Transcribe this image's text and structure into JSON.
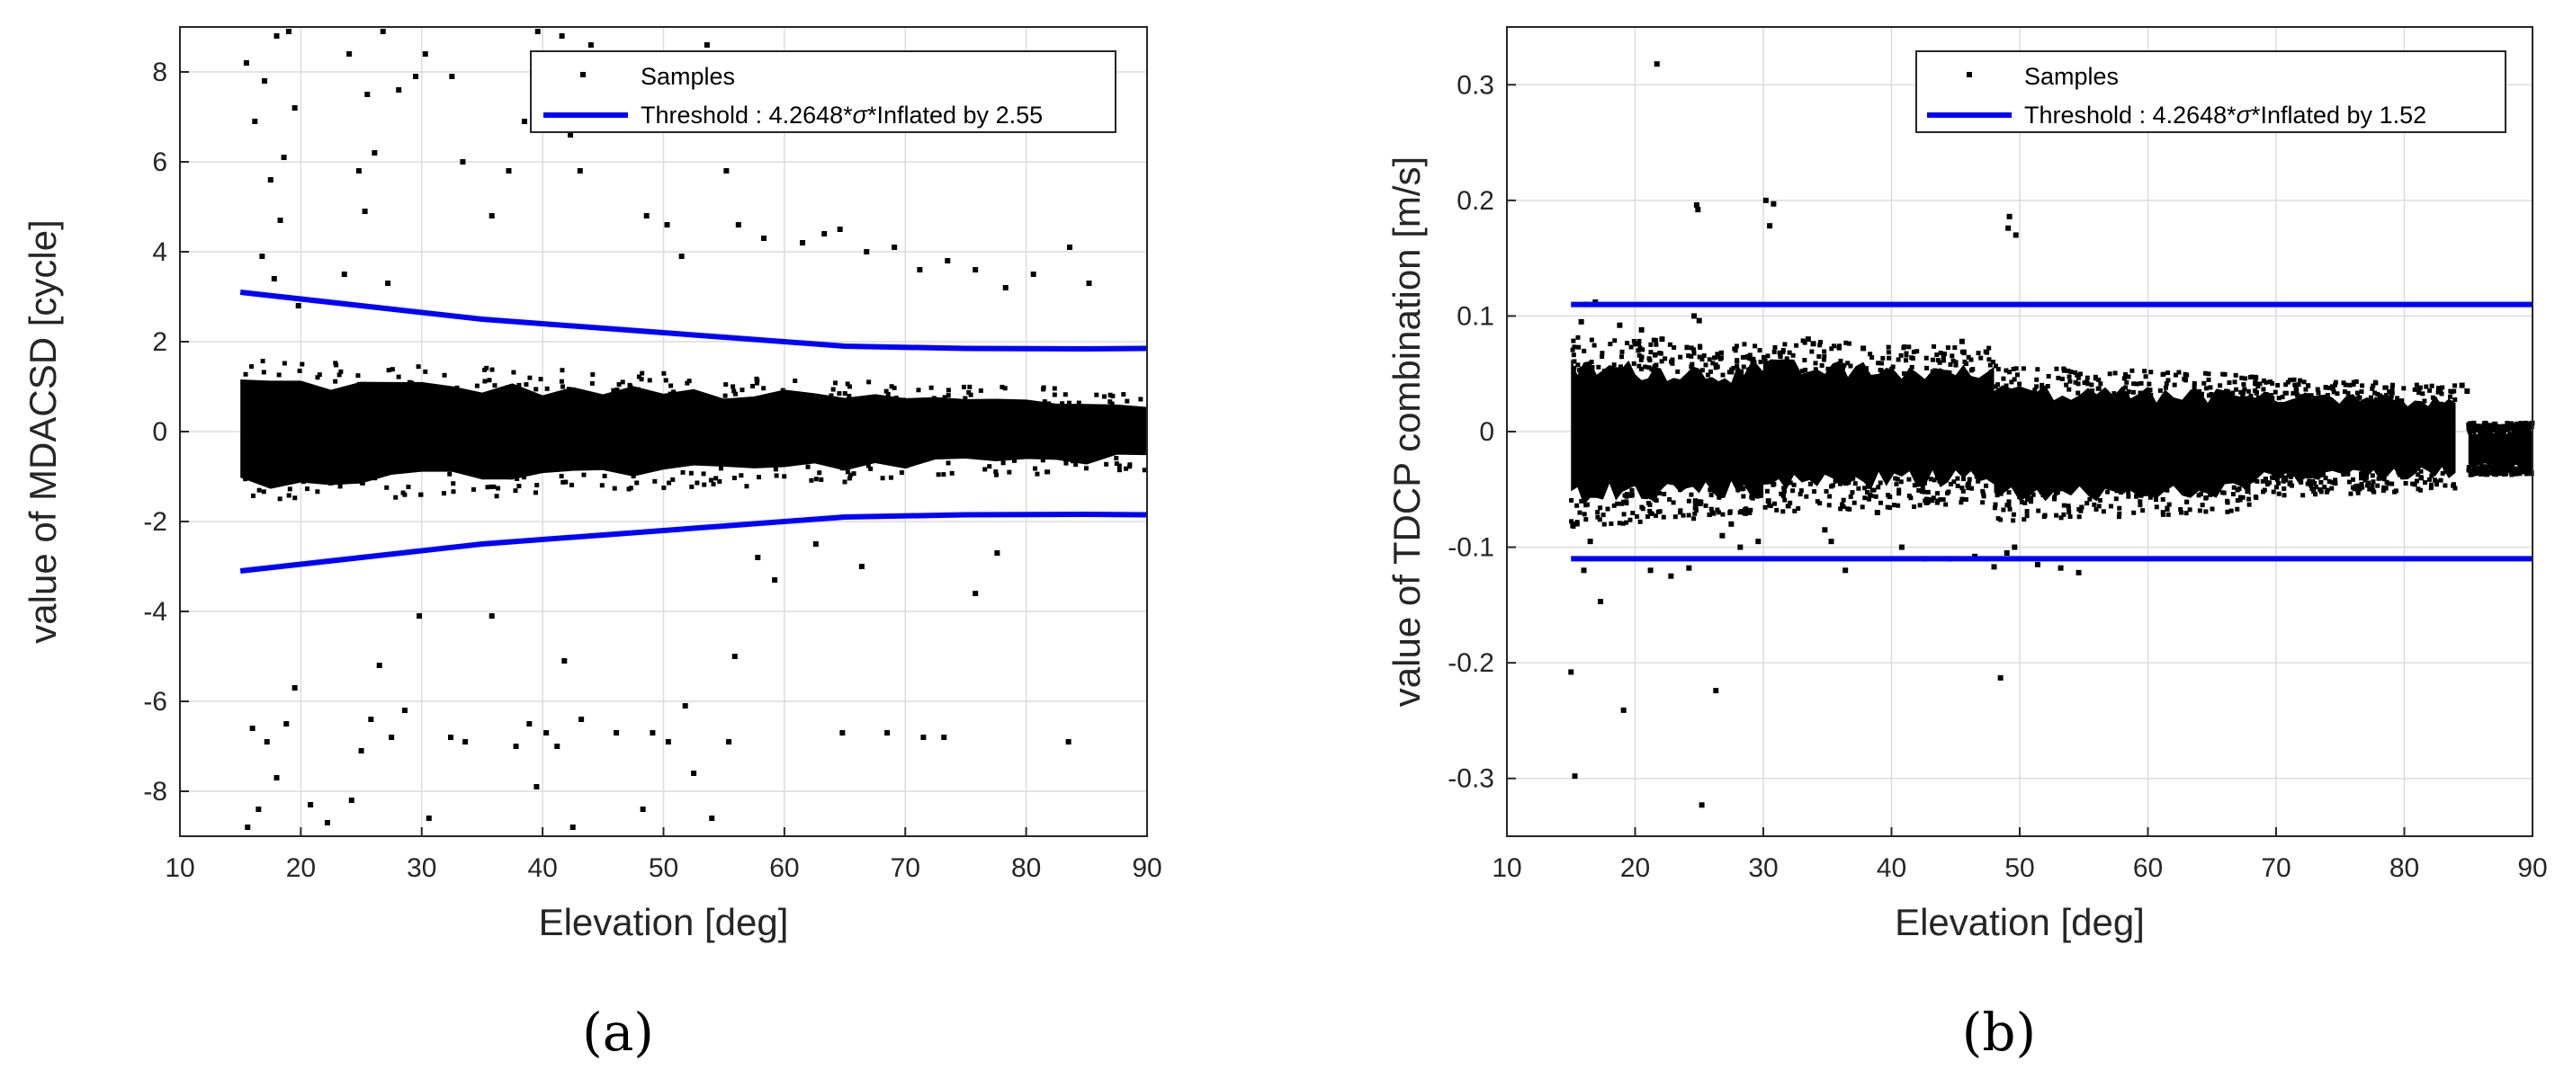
{
  "chart_data": [
    {
      "type": "scatter",
      "panel_label": "(a)",
      "xlabel": "Elevation [deg]",
      "ylabel": "value of MDACSD [cycle]",
      "xlim": [
        10,
        90
      ],
      "ylim": [
        -9,
        9
      ],
      "xticks": [
        10,
        20,
        30,
        40,
        50,
        60,
        70,
        80,
        90
      ],
      "yticks": [
        -8,
        -6,
        -4,
        -2,
        0,
        2,
        4,
        6,
        8
      ],
      "grid": true,
      "legend": {
        "position": "top-right",
        "entries": [
          "Samples",
          "Threshold : 4.2648*σ*Inflated by 2.55"
        ]
      },
      "series": [
        {
          "name": "Samples",
          "kind": "markers",
          "color": "#000000",
          "bands": [
            {
              "x": [
                15,
                90
              ],
              "center": 0,
              "halfwidth_start": 1.1,
              "halfwidth_end": 0.6
            }
          ],
          "points": [
            [
              15.5,
              8.2
            ],
            [
              16.2,
              6.9
            ],
            [
              17.0,
              7.8
            ],
            [
              17.5,
              5.6
            ],
            [
              18.0,
              8.8
            ],
            [
              18.3,
              4.7
            ],
            [
              19.0,
              8.9
            ],
            [
              19.5,
              7.2
            ],
            [
              16.8,
              3.9
            ],
            [
              17.8,
              3.4
            ],
            [
              18.6,
              6.1
            ],
            [
              19.8,
              2.8
            ],
            [
              24.0,
              8.4
            ],
            [
              25.5,
              7.5
            ],
            [
              26.8,
              8.9
            ],
            [
              24.8,
              5.8
            ],
            [
              25.3,
              4.9
            ],
            [
              26.1,
              6.2
            ],
            [
              23.6,
              3.5
            ],
            [
              27.2,
              3.3
            ],
            [
              28.1,
              7.6
            ],
            [
              29.5,
              7.9
            ],
            [
              30.3,
              8.4
            ],
            [
              32.5,
              7.9
            ],
            [
              33.4,
              6.0
            ],
            [
              35.8,
              4.8
            ],
            [
              37.2,
              5.8
            ],
            [
              38.5,
              6.9
            ],
            [
              39.6,
              8.9
            ],
            [
              40.2,
              7.7
            ],
            [
              40.9,
              7.1
            ],
            [
              41.6,
              8.8
            ],
            [
              42.3,
              6.6
            ],
            [
              43.1,
              5.8
            ],
            [
              44.0,
              8.6
            ],
            [
              48.6,
              4.8
            ],
            [
              50.3,
              4.6
            ],
            [
              51.5,
              3.9
            ],
            [
              52.8,
              7.8
            ],
            [
              53.6,
              8.6
            ],
            [
              55.2,
              5.8
            ],
            [
              56.2,
              4.6
            ],
            [
              58.3,
              4.3
            ],
            [
              61.5,
              4.2
            ],
            [
              63.3,
              4.4
            ],
            [
              64.6,
              4.5
            ],
            [
              66.8,
              4.0
            ],
            [
              69.1,
              4.1
            ],
            [
              71.2,
              3.6
            ],
            [
              73.5,
              3.8
            ],
            [
              75.8,
              3.6
            ],
            [
              78.3,
              3.2
            ],
            [
              80.6,
              3.5
            ],
            [
              83.6,
              4.1
            ],
            [
              85.2,
              3.3
            ],
            [
              16.0,
              -6.6
            ],
            [
              17.2,
              -6.9
            ],
            [
              18.0,
              -7.7
            ],
            [
              18.8,
              -6.5
            ],
            [
              19.5,
              -5.7
            ],
            [
              15.6,
              -8.8
            ],
            [
              16.5,
              -8.4
            ],
            [
              20.8,
              -8.3
            ],
            [
              22.2,
              -8.7
            ],
            [
              24.2,
              -8.2
            ],
            [
              25.0,
              -7.1
            ],
            [
              25.8,
              -6.4
            ],
            [
              26.5,
              -5.2
            ],
            [
              27.5,
              -6.8
            ],
            [
              28.6,
              -6.2
            ],
            [
              29.8,
              -4.1
            ],
            [
              30.6,
              -8.6
            ],
            [
              32.4,
              -6.8
            ],
            [
              33.6,
              -6.9
            ],
            [
              35.8,
              -4.1
            ],
            [
              37.8,
              -7.0
            ],
            [
              38.9,
              -6.5
            ],
            [
              39.5,
              -7.9
            ],
            [
              40.3,
              -6.7
            ],
            [
              41.2,
              -7.0
            ],
            [
              41.8,
              -5.1
            ],
            [
              42.5,
              -8.8
            ],
            [
              43.2,
              -6.4
            ],
            [
              46.1,
              -6.7
            ],
            [
              48.3,
              -8.4
            ],
            [
              49.1,
              -6.7
            ],
            [
              50.4,
              -6.9
            ],
            [
              51.8,
              -6.1
            ],
            [
              52.5,
              -7.6
            ],
            [
              54.0,
              -8.6
            ],
            [
              55.4,
              -6.9
            ],
            [
              55.9,
              -5.0
            ],
            [
              57.8,
              -2.8
            ],
            [
              59.2,
              -3.3
            ],
            [
              62.6,
              -2.5
            ],
            [
              64.8,
              -6.7
            ],
            [
              66.4,
              -3.0
            ],
            [
              68.5,
              -6.7
            ],
            [
              71.5,
              -6.8
            ],
            [
              73.2,
              -6.8
            ],
            [
              75.8,
              -3.6
            ],
            [
              77.6,
              -2.7
            ],
            [
              83.5,
              -6.9
            ]
          ]
        },
        {
          "name": "Threshold : 4.2648*σ*Inflated by 2.55",
          "kind": "line",
          "color": "#0000ff",
          "x": [
            15,
            25,
            35,
            45,
            55,
            65,
            75,
            85,
            90
          ],
          "y": [
            3.1,
            2.8,
            2.5,
            2.3,
            2.1,
            1.9,
            1.85,
            1.84,
            1.85
          ]
        },
        {
          "name": "",
          "kind": "line",
          "color": "#0000ff",
          "x": [
            15,
            25,
            35,
            45,
            55,
            65,
            75,
            85,
            90
          ],
          "y": [
            -3.1,
            -2.8,
            -2.5,
            -2.3,
            -2.1,
            -1.9,
            -1.85,
            -1.84,
            -1.85
          ]
        }
      ]
    },
    {
      "type": "scatter",
      "panel_label": "(b)",
      "xlabel": "Elevation [deg]",
      "ylabel": "value of TDCP combination [m/s]",
      "xlim": [
        10,
        90
      ],
      "ylim": [
        -0.35,
        0.35
      ],
      "xticks": [
        10,
        20,
        30,
        40,
        50,
        60,
        70,
        80,
        90
      ],
      "yticks": [
        -0.3,
        -0.2,
        -0.1,
        0,
        0.1,
        0.2,
        0.3
      ],
      "grid": true,
      "legend": {
        "position": "top-right",
        "entries": [
          "Samples",
          "Threshold : 4.2648*σ*Inflated by 1.52"
        ]
      },
      "series": [
        {
          "name": "Samples",
          "kind": "markers",
          "color": "#000000",
          "bands": [
            {
              "x": [
                15,
                30
              ],
              "center": 0.0,
              "halfwidth_start": 0.055,
              "halfwidth_end": 0.05
            },
            {
              "x": [
                30,
                48
              ],
              "center": 0.005,
              "halfwidth_start": 0.05,
              "halfwidth_end": 0.045
            },
            {
              "x": [
                48,
                68
              ],
              "center": -0.01,
              "halfwidth_start": 0.045,
              "halfwidth_end": 0.04
            },
            {
              "x": [
                68,
                84
              ],
              "center": -0.005,
              "halfwidth_start": 0.035,
              "halfwidth_end": 0.03
            },
            {
              "x": [
                85,
                90
              ],
              "center": -0.015,
              "halfwidth_start": 0.015,
              "halfwidth_end": 0.015
            }
          ],
          "points": [
            [
              21.7,
              0.318
            ],
            [
              24.8,
              0.196
            ],
            [
              24.9,
              0.192
            ],
            [
              30.2,
              0.2
            ],
            [
              30.5,
              0.178
            ],
            [
              30.8,
              0.197
            ],
            [
              49.2,
              0.186
            ],
            [
              49.7,
              0.17
            ],
            [
              49.1,
              0.176
            ],
            [
              15.0,
              -0.208
            ],
            [
              15.3,
              -0.298
            ],
            [
              19.1,
              -0.241
            ],
            [
              25.2,
              -0.323
            ],
            [
              26.3,
              -0.224
            ],
            [
              48.5,
              -0.213
            ],
            [
              17.3,
              -0.147
            ],
            [
              16.0,
              -0.12
            ],
            [
              16.5,
              -0.095
            ],
            [
              21.2,
              -0.12
            ],
            [
              22.8,
              -0.125
            ],
            [
              24.2,
              -0.118
            ],
            [
              26.8,
              -0.09
            ],
            [
              27.5,
              -0.08
            ],
            [
              28.2,
              -0.1
            ],
            [
              28.9,
              -0.07
            ],
            [
              29.6,
              -0.095
            ],
            [
              30.4,
              -0.06
            ],
            [
              34.8,
              -0.085
            ],
            [
              35.3,
              -0.095
            ],
            [
              36.4,
              -0.12
            ],
            [
              38.9,
              -0.07
            ],
            [
              40.8,
              -0.1
            ],
            [
              42.6,
              -0.11
            ],
            [
              44.5,
              -0.11
            ],
            [
              46.5,
              -0.108
            ],
            [
              48.0,
              -0.117
            ],
            [
              49.0,
              -0.105
            ],
            [
              49.6,
              -0.1
            ],
            [
              51.4,
              -0.115
            ],
            [
              53.2,
              -0.118
            ],
            [
              54.6,
              -0.122
            ],
            [
              33.5,
              0.08
            ],
            [
              33.9,
              0.076
            ],
            [
              37.8,
              0.072
            ],
            [
              45.5,
              0.078
            ],
            [
              15.8,
              0.095
            ],
            [
              16.2,
              0.11
            ],
            [
              16.9,
              0.112
            ],
            [
              18.8,
              0.092
            ],
            [
              20.5,
              0.088
            ],
            [
              22.1,
              0.08
            ],
            [
              24.6,
              0.1
            ],
            [
              25.0,
              0.096
            ],
            [
              84.5,
              0.04
            ],
            [
              84.9,
              0.035
            ]
          ]
        },
        {
          "name": "Threshold : 4.2648*σ*Inflated by 1.52",
          "kind": "line",
          "color": "#0000ff",
          "x": [
            15,
            90
          ],
          "y": [
            0.11,
            0.11
          ]
        },
        {
          "name": "",
          "kind": "line",
          "color": "#0000ff",
          "x": [
            15,
            90
          ],
          "y": [
            -0.11,
            -0.11
          ]
        }
      ]
    }
  ]
}
